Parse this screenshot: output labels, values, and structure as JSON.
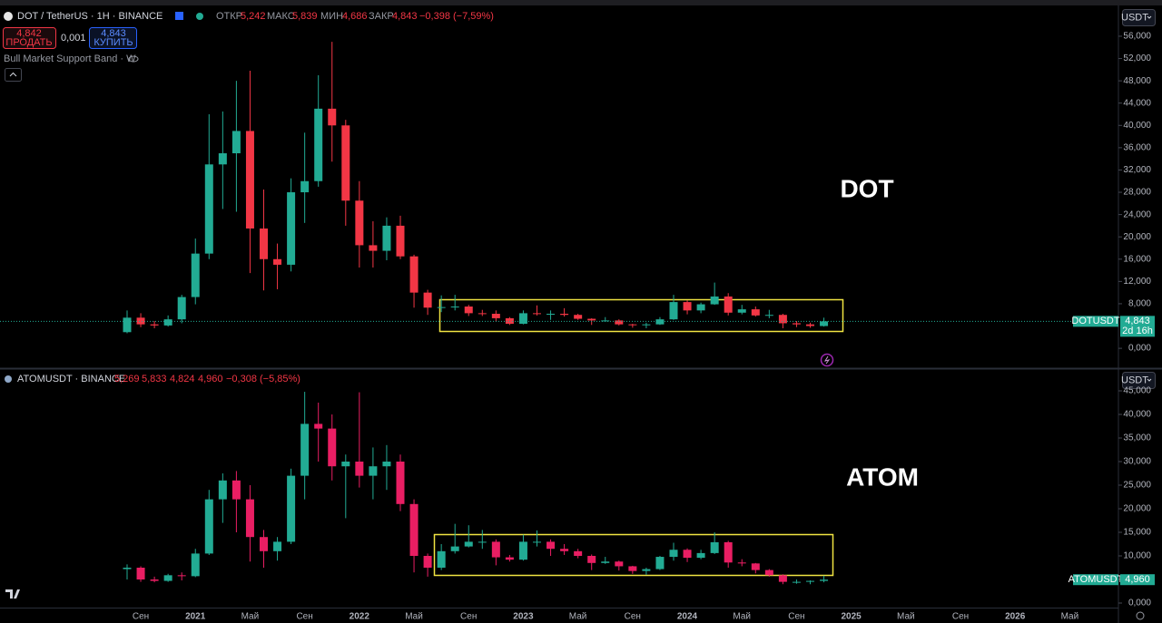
{
  "header": {
    "symbol_title": "DOT / TetherUS · 1H · BINANCE",
    "ohlc_labels": [
      "ОТКР",
      "МАКС",
      "МИН",
      "ЗАКР"
    ],
    "ohlc_values": [
      "5,242",
      "5,839",
      "4,686",
      "4,843"
    ],
    "change": "−0,398 (−7,59%)",
    "sell_price": "4,842",
    "sell_label": "ПРОДАТЬ",
    "spread": "0,001",
    "buy_price": "4,843",
    "buy_label": "КУПИТЬ",
    "indicator": "Bull Market Support Band · W",
    "currency": "USDT",
    "second_title": "ATOMUSDT · BINANCE",
    "second_values": [
      "5,269",
      "5,833",
      "4,824",
      "4,960"
    ],
    "second_change": "−0,308 (−5,85%)"
  },
  "time_axis": [
    "Сен",
    "2021",
    "Май",
    "Сен",
    "2022",
    "Май",
    "Сен",
    "2023",
    "Май",
    "Сен",
    "2024",
    "Май",
    "Сен",
    "2025",
    "Май",
    "Сен",
    "2026",
    "Май"
  ],
  "chart_data": [
    {
      "type": "candlestick",
      "annotation": "DOT",
      "up_color": "#22ab94",
      "down_color": "#f23645",
      "ylim": [
        -3.4,
        61.2
      ],
      "yticks": [
        {
          "value": 0,
          "label": "0,000"
        },
        {
          "value": 8,
          "label": "8,000"
        },
        {
          "value": 12,
          "label": "12,000"
        },
        {
          "value": 16,
          "label": "16,000"
        },
        {
          "value": 20,
          "label": "20,000"
        },
        {
          "value": 24,
          "label": "24,000"
        },
        {
          "value": 28,
          "label": "28,000"
        },
        {
          "value": 32,
          "label": "32,000"
        },
        {
          "value": 36,
          "label": "36,000"
        },
        {
          "value": 40,
          "label": "40,000"
        },
        {
          "value": 44,
          "label": "44,000"
        },
        {
          "value": 48,
          "label": "48,000"
        },
        {
          "value": 52,
          "label": "52,000"
        },
        {
          "value": 56,
          "label": "56,000"
        }
      ],
      "price_line": true,
      "last_price": {
        "value": 4.843,
        "label": "4,843"
      },
      "last_symbol": "DOTUSDT",
      "countdown": "2d 16h",
      "open": [
        2.9,
        5.5,
        4.3,
        4.1,
        5.2,
        9.2,
        17.0,
        33.0,
        35.0,
        39.0,
        21.5,
        16.0,
        15.0,
        28.0,
        30.0,
        43.0,
        40.0,
        26.5,
        18.5,
        17.5,
        22.0,
        16.5,
        10.0,
        7.3,
        7.4,
        7.5,
        6.3,
        6.2,
        5.4,
        4.4,
        6.3,
        6.2,
        6.2,
        6.0,
        5.3,
        5.0,
        5.0,
        4.3,
        4.2,
        4.3,
        5.2,
        8.3,
        6.8,
        7.9,
        9.3,
        6.4,
        7.0,
        5.9,
        6.0,
        4.5,
        4.3,
        4.0
      ],
      "high": [
        6.8,
        6.3,
        4.9,
        5.9,
        9.6,
        19.7,
        42.0,
        42.5,
        48.0,
        49.8,
        28.5,
        18.8,
        30.5,
        38.7,
        49.0,
        55.0,
        41.0,
        30.0,
        22.8,
        23.5,
        23.8,
        16.8,
        10.5,
        9.5,
        9.6,
        7.8,
        6.9,
        6.8,
        5.6,
        6.8,
        7.7,
        6.8,
        7.2,
        6.2,
        5.4,
        5.6,
        5.2,
        4.4,
        4.6,
        5.6,
        9.6,
        8.6,
        8.2,
        11.8,
        9.9,
        7.8,
        7.5,
        6.9,
        6.2,
        4.9,
        4.6,
        5.5
      ],
      "low": [
        2.7,
        3.8,
        3.6,
        3.9,
        4.5,
        7.9,
        16.0,
        25.0,
        24.5,
        13.5,
        10.4,
        10.6,
        13.8,
        22.5,
        29.0,
        33.5,
        22.0,
        14.5,
        14.5,
        15.8,
        16.0,
        7.3,
        6.0,
        6.5,
        6.8,
        5.8,
        5.8,
        4.8,
        4.2,
        4.3,
        5.9,
        5.1,
        5.7,
        5.1,
        4.2,
        4.8,
        4.1,
        3.7,
        3.6,
        4.2,
        5.1,
        6.1,
        6.3,
        7.8,
        5.9,
        6.1,
        5.7,
        5.4,
        3.6,
        3.8,
        3.7,
        3.9
      ],
      "close": [
        5.5,
        4.3,
        4.1,
        5.2,
        9.2,
        17.0,
        33.0,
        35.0,
        39.0,
        21.5,
        16.0,
        15.0,
        28.0,
        30.0,
        43.0,
        40.0,
        26.5,
        18.5,
        17.5,
        22.0,
        16.5,
        10.0,
        7.3,
        7.4,
        7.5,
        6.3,
        6.2,
        5.4,
        4.4,
        6.3,
        6.2,
        6.2,
        6.0,
        5.3,
        5.0,
        5.0,
        4.3,
        4.2,
        4.3,
        5.2,
        8.3,
        6.8,
        7.9,
        9.3,
        6.4,
        7.0,
        5.9,
        6.0,
        4.5,
        4.3,
        4.0,
        4.843
      ]
    },
    {
      "type": "candlestick",
      "annotation": "ATOM",
      "up_color": "#22ab94",
      "down_color": "#e91e63",
      "ylim": [
        -0.96,
        49.04
      ],
      "yticks": [
        {
          "value": 0,
          "label": "0,000"
        },
        {
          "value": 5,
          "label": "5,000"
        },
        {
          "value": 10,
          "label": "10,000"
        },
        {
          "value": 15,
          "label": "15,000"
        },
        {
          "value": 20,
          "label": "20,000"
        },
        {
          "value": 25,
          "label": "25,000"
        },
        {
          "value": 30,
          "label": "30,000"
        },
        {
          "value": 35,
          "label": "35,000"
        },
        {
          "value": 40,
          "label": "40,000"
        },
        {
          "value": 45,
          "label": "45,000"
        }
      ],
      "price_line": false,
      "last_price": {
        "value": 4.96,
        "label": "4,960"
      },
      "last_symbol": "ATOMUSDT",
      "open": [
        7.2,
        7.5,
        5.0,
        4.7,
        5.9,
        5.7,
        10.5,
        22.0,
        26.0,
        22.0,
        14.0,
        11.0,
        13.0,
        27.0,
        38.0,
        37.0,
        29.0,
        30.0,
        27.0,
        29.0,
        30.0,
        21.0,
        10.0,
        7.5,
        11.0,
        12.0,
        13.0,
        13.0,
        9.7,
        9.2,
        13.0,
        13.0,
        11.5,
        11.0,
        10.0,
        8.5,
        8.8,
        7.8,
        6.8,
        7.2,
        9.8,
        11.3,
        9.6,
        10.6,
        12.9,
        8.6,
        8.4,
        7.0,
        5.9,
        4.5,
        4.5,
        4.7
      ],
      "high": [
        8.2,
        7.8,
        5.6,
        6.2,
        6.5,
        11.5,
        24.0,
        27.5,
        28.0,
        25.0,
        15.5,
        14.0,
        28.5,
        44.8,
        42.5,
        40.0,
        31.5,
        44.7,
        33.0,
        33.5,
        31.5,
        22.0,
        10.5,
        12.5,
        16.8,
        16.5,
        15.5,
        13.5,
        10.2,
        14.5,
        15.4,
        13.5,
        12.5,
        11.5,
        10.3,
        9.8,
        9.0,
        7.9,
        7.5,
        10.0,
        12.8,
        11.6,
        11.3,
        15.0,
        13.2,
        9.3,
        8.5,
        7.2,
        6.1,
        5.0,
        4.8,
        5.8
      ],
      "low": [
        5.0,
        4.5,
        4.4,
        4.5,
        4.8,
        5.5,
        10.2,
        17.0,
        15.0,
        8.8,
        7.5,
        9.0,
        12.5,
        22.0,
        30.0,
        26.0,
        18.0,
        24.5,
        22.0,
        24.0,
        19.5,
        6.5,
        5.6,
        7.0,
        10.5,
        11.8,
        11.5,
        8.0,
        8.8,
        9.0,
        12.0,
        10.0,
        10.2,
        9.5,
        7.0,
        8.3,
        6.9,
        6.2,
        6.0,
        7.0,
        9.0,
        8.7,
        9.3,
        10.4,
        7.5,
        7.8,
        6.3,
        5.6,
        4.0,
        4.1,
        4.0,
        4.4
      ],
      "close": [
        7.5,
        5.0,
        4.7,
        5.9,
        5.7,
        10.5,
        22.0,
        26.0,
        22.0,
        14.0,
        11.0,
        13.0,
        27.0,
        38.0,
        37.0,
        29.0,
        30.0,
        27.0,
        29.0,
        30.0,
        21.0,
        10.0,
        7.5,
        11.0,
        12.0,
        13.0,
        13.0,
        9.7,
        9.2,
        13.0,
        13.0,
        11.5,
        11.0,
        10.0,
        8.5,
        8.8,
        7.8,
        6.8,
        7.2,
        9.8,
        11.3,
        9.6,
        10.6,
        12.9,
        8.6,
        8.4,
        7.0,
        5.9,
        4.5,
        4.5,
        4.7,
        4.96
      ]
    }
  ]
}
